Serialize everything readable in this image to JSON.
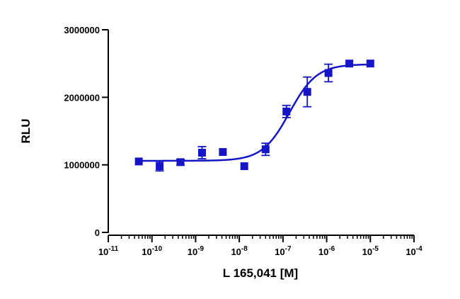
{
  "chart_data": {
    "type": "scatter",
    "title": "",
    "xlabel": "L 165,041 [M]",
    "ylabel": "RLU",
    "x_scale": "log",
    "xlim": [
      1e-11,
      0.0001
    ],
    "ylim": [
      0,
      3000000
    ],
    "y_ticks": [
      0,
      1000000,
      2000000,
      3000000
    ],
    "y_tick_labels": [
      "0",
      "1000000",
      "2000000",
      "3000000"
    ],
    "x_ticks": [
      {
        "base": "10",
        "exp": "-11",
        "value": 1e-11
      },
      {
        "base": "10",
        "exp": "-10",
        "value": 1e-10
      },
      {
        "base": "10",
        "exp": "-9",
        "value": 1e-09
      },
      {
        "base": "10",
        "exp": "-8",
        "value": 1e-08
      },
      {
        "base": "10",
        "exp": "-7",
        "value": 1e-07
      },
      {
        "base": "10",
        "exp": "-6",
        "value": 1e-06
      },
      {
        "base": "10",
        "exp": "-5",
        "value": 1e-05
      },
      {
        "base": "10",
        "exp": "-4",
        "value": 0.0001
      }
    ],
    "grid": false,
    "color": "#1515c8",
    "marker": "square",
    "series": [
      {
        "x": [
          5e-11,
          1.5e-10,
          4.5e-10,
          1.4e-09,
          4.2e-09,
          1.3e-08,
          4e-08,
          1.2e-07,
          3.6e-07,
          1.1e-06,
          3.3e-06,
          1e-05
        ],
        "y": [
          1050000,
          980000,
          1040000,
          1180000,
          1190000,
          980000,
          1230000,
          1790000,
          2080000,
          2360000,
          2500000,
          2500000
        ],
        "error": [
          0,
          70000,
          40000,
          90000,
          0,
          0,
          90000,
          90000,
          220000,
          130000,
          0,
          0
        ]
      }
    ],
    "fit_curve": {
      "model": "sigmoidal dose-response",
      "bottom": 1060000,
      "top": 2490000,
      "log_ec50": -6.85,
      "hill_slope": 1.4,
      "x_range": [
        5e-11,
        1e-05
      ]
    }
  }
}
